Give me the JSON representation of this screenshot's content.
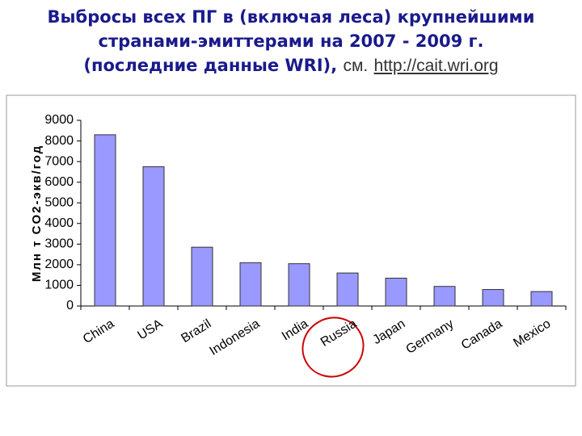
{
  "chart_data": {
    "type": "bar",
    "title_lines": [
      "Выбросы всех ПГ в (включая леса) крупнейшими",
      "странами-эмиттерами на 2007 - 2009 г.",
      "(последние данные WRI),"
    ],
    "source_prefix": "см.",
    "source_url": "http://cait.wri.org",
    "y_label": "Млн т CO2-экв/год",
    "categories": [
      "China",
      "USA",
      "Brazil",
      "Indonesia",
      "India",
      "Russia",
      "Japan",
      "Germany",
      "Canada",
      "Mexico"
    ],
    "values": [
      8300,
      6750,
      2850,
      2100,
      2050,
      1600,
      1350,
      950,
      800,
      700
    ],
    "color": "#9999ff",
    "ylim": [
      0,
      9000
    ],
    "yticks": [
      0,
      1000,
      2000,
      3000,
      4000,
      5000,
      6000,
      7000,
      8000,
      9000
    ],
    "grid": false
  }
}
